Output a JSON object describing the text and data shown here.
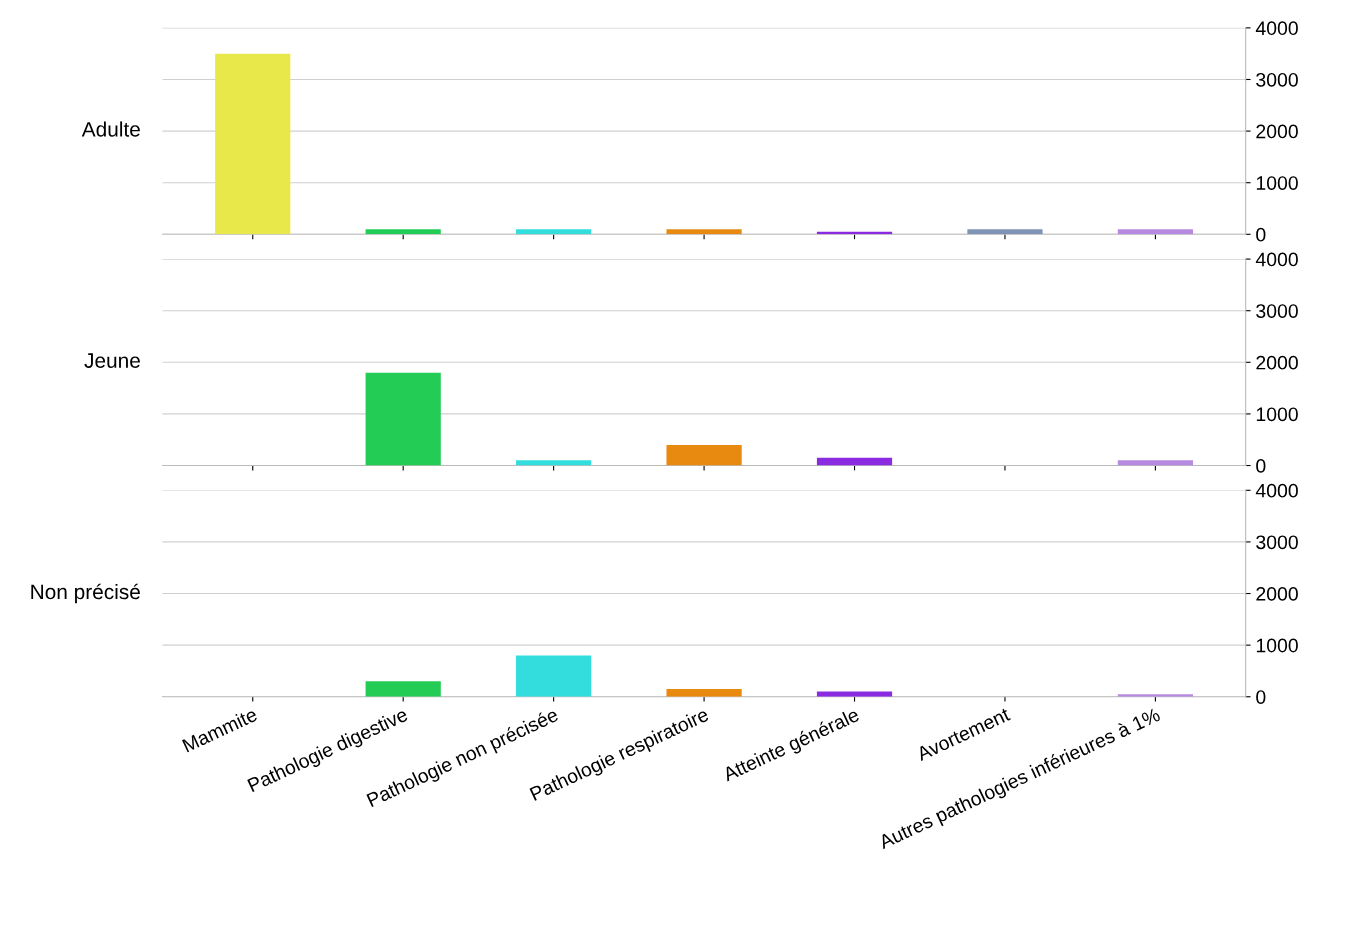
{
  "chart_data": [
    {
      "type": "bar",
      "categories": [
        null,
        null,
        null,
        null,
        null,
        null,
        null
      ],
      "ylim": [
        0,
        4000
      ],
      "yticks": [
        0,
        1000,
        2000,
        3000,
        4000
      ],
      "grid": "y",
      "series": [
        {
          "name": "Adulte",
          "colors": [
            "#e8e84a",
            "#22cc55",
            "#33dddd",
            "#e88a10",
            "#8a2be2",
            "#7f93b5",
            "#b58ae0"
          ],
          "values": [
            3500,
            100,
            100,
            100,
            50,
            100,
            100
          ]
        }
      ]
    },
    {
      "type": "bar",
      "categories": [
        null,
        null,
        null,
        null,
        null,
        null,
        null
      ],
      "ylim": [
        0,
        4000
      ],
      "yticks": [
        0,
        1000,
        2000,
        3000,
        4000
      ],
      "grid": "y",
      "series": [
        {
          "name": "Jeune",
          "colors": [
            "#e8e84a",
            "#22cc55",
            "#33dddd",
            "#e88a10",
            "#8a2be2",
            "#7f93b5",
            "#b58ae0"
          ],
          "values": [
            null,
            1800,
            100,
            400,
            150,
            null,
            100
          ]
        }
      ]
    },
    {
      "type": "bar",
      "categories": [
        "Mammite",
        "Pathologie digestive",
        "Pathologie non précisée",
        "Pathologie respiratoire",
        "Atteinte générale",
        "Avortement",
        "Autres pathologies inférieures à 1%"
      ],
      "ylim": [
        0,
        4000
      ],
      "yticks": [
        0,
        1000,
        2000,
        3000,
        4000
      ],
      "grid": "y",
      "series": [
        {
          "name": "Non précisé",
          "colors": [
            "#e8e84a",
            "#22cc55",
            "#33dddd",
            "#e88a10",
            "#8a2be2",
            "#7f93b5",
            "#b58ae0"
          ],
          "values": [
            null,
            300,
            800,
            150,
            100,
            null,
            50
          ]
        }
      ]
    }
  ]
}
